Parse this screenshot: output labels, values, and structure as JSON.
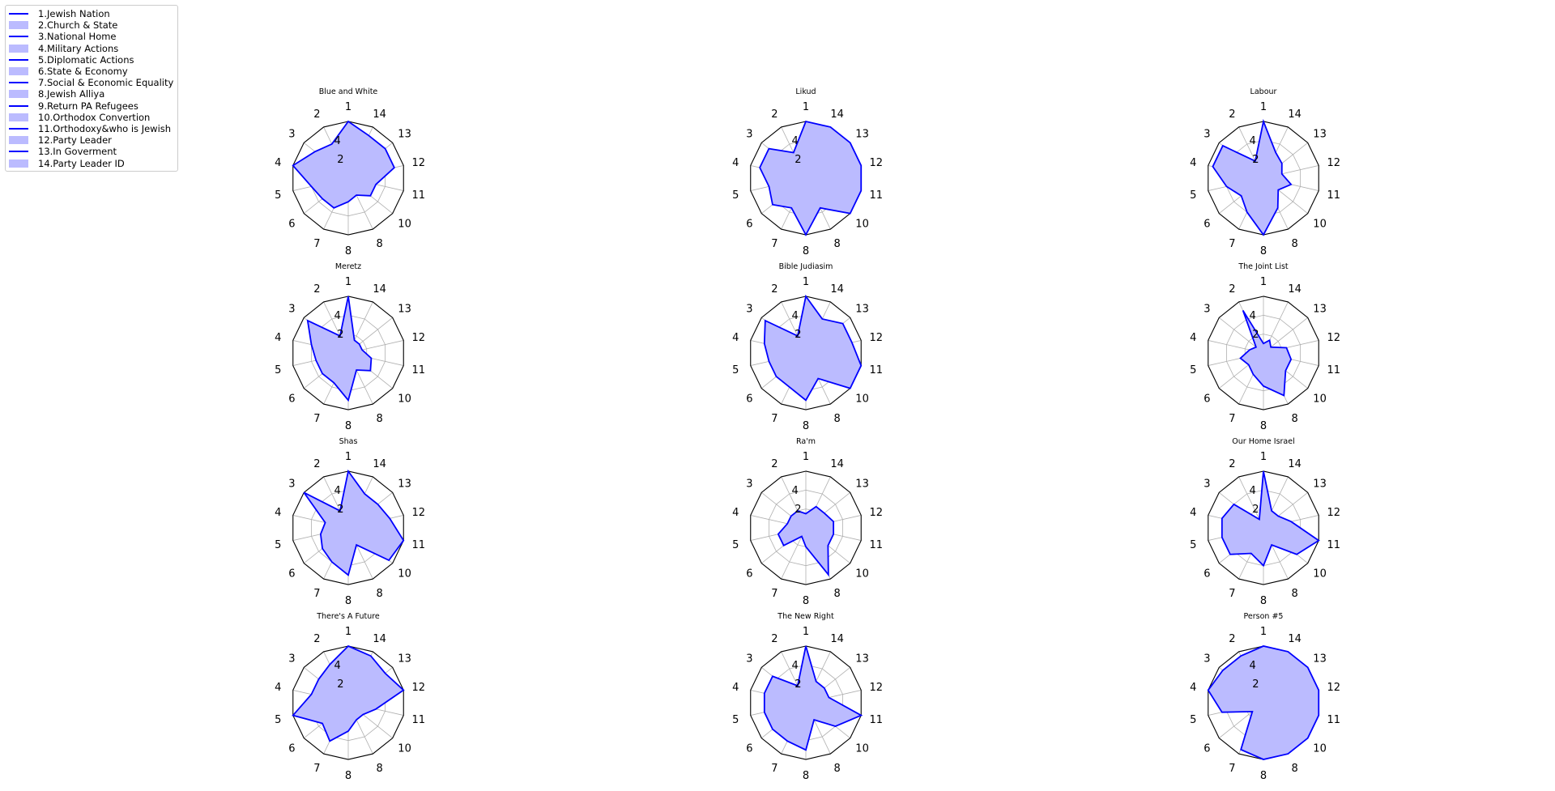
{
  "colors": {
    "line": "#0000ff",
    "fill": "#bbbbff",
    "grid": "#b0b0b0",
    "frame": "#000000"
  },
  "legend": {
    "items": [
      {
        "label": "1.Jewish Nation",
        "kind": "line"
      },
      {
        "label": "2.Church & State",
        "kind": "fill"
      },
      {
        "label": "3.National Home",
        "kind": "line"
      },
      {
        "label": "4.Military Actions",
        "kind": "fill"
      },
      {
        "label": "5.Diplomatic Actions",
        "kind": "line"
      },
      {
        "label": "6.State & Economy",
        "kind": "fill"
      },
      {
        "label": "7.Social & Economic Equality",
        "kind": "line"
      },
      {
        "label": "8.Jewish Alliya",
        "kind": "fill"
      },
      {
        "label": "9.Return PA Refugees",
        "kind": "line"
      },
      {
        "label": "10.Orthodox Convertion",
        "kind": "fill"
      },
      {
        "label": "11.Orthodoxy&who is Jewish",
        "kind": "line"
      },
      {
        "label": "12.Party Leader",
        "kind": "fill"
      },
      {
        "label": "13.In Goverment",
        "kind": "line"
      },
      {
        "label": "14.Party Leader ID",
        "kind": "fill"
      }
    ]
  },
  "chart_data": [
    {
      "type": "radar",
      "title": "Blue and White",
      "angle_labels": [
        "1",
        "2",
        "3",
        "4",
        "5",
        "6",
        "7",
        "8",
        "8",
        "10",
        "11",
        "12",
        "13",
        "14"
      ],
      "radial_ticks": [
        "2",
        "4"
      ],
      "rmax": 6,
      "values": [
        6,
        4,
        4.5,
        6,
        4,
        3.5,
        3.5,
        2.5,
        2,
        3,
        3,
        5,
        5,
        5
      ]
    },
    {
      "type": "radar",
      "title": "Likud",
      "angle_labels": [
        "1",
        "2",
        "3",
        "4",
        "5",
        "6",
        "7",
        "8",
        "8",
        "10",
        "11",
        "12",
        "13",
        "14"
      ],
      "radial_ticks": [
        "2",
        "4"
      ],
      "rmax": 6,
      "values": [
        6,
        3,
        5,
        5,
        4,
        4.5,
        3.5,
        6,
        3.5,
        6,
        6,
        6,
        6,
        6
      ]
    },
    {
      "type": "radar",
      "title": "Labour",
      "angle_labels": [
        "1",
        "2",
        "3",
        "4",
        "5",
        "6",
        "7",
        "8",
        "8",
        "10",
        "11",
        "12",
        "13",
        "14"
      ],
      "radial_ticks": [
        "2",
        "4"
      ],
      "rmax": 6,
      "values": [
        6,
        2,
        5.5,
        5.5,
        4,
        3,
        4,
        6,
        3.5,
        2,
        3,
        2,
        2.5,
        3
      ]
    },
    {
      "type": "radar",
      "title": "Meretz",
      "angle_labels": [
        "1",
        "2",
        "3",
        "4",
        "5",
        "6",
        "7",
        "8",
        "8",
        "10",
        "11",
        "12",
        "13",
        "14"
      ],
      "radial_ticks": [
        "2",
        "4"
      ],
      "rmax": 6,
      "values": [
        6,
        2,
        5.5,
        4,
        3.5,
        3.5,
        3.5,
        5,
        2,
        3,
        2.5,
        1.5,
        1.5,
        1.5
      ]
    },
    {
      "type": "radar",
      "title": "Bible Judiasim",
      "angle_labels": [
        "1",
        "2",
        "3",
        "4",
        "5",
        "6",
        "7",
        "8",
        "8",
        "10",
        "11",
        "12",
        "13",
        "14"
      ],
      "radial_ticks": [
        "2",
        "4"
      ],
      "rmax": 6,
      "values": [
        6,
        2,
        5.5,
        4.5,
        4,
        4,
        4,
        5,
        3,
        6,
        6,
        5,
        5,
        4
      ]
    },
    {
      "type": "radar",
      "title": "The Joint List",
      "angle_labels": [
        "1",
        "2",
        "3",
        "4",
        "5",
        "6",
        "7",
        "8",
        "8",
        "10",
        "11",
        "12",
        "13",
        "14"
      ],
      "radial_ticks": [
        "2",
        "4"
      ],
      "rmax": 6,
      "values": [
        1,
        5,
        1,
        1.5,
        2.5,
        2,
        2.5,
        3.5,
        5,
        3,
        3,
        2.5,
        1,
        1.5
      ]
    },
    {
      "type": "radar",
      "title": "Shas",
      "angle_labels": [
        "1",
        "2",
        "3",
        "4",
        "5",
        "6",
        "7",
        "8",
        "8",
        "10",
        "11",
        "12",
        "13",
        "14"
      ],
      "radial_ticks": [
        "2",
        "4"
      ],
      "rmax": 6,
      "values": [
        6,
        2,
        6,
        2.5,
        3,
        3.5,
        4,
        5,
        2,
        5.5,
        6,
        4.5,
        4,
        4
      ]
    },
    {
      "type": "radar",
      "title": "Ra'm",
      "angle_labels": [
        "1",
        "2",
        "3",
        "4",
        "5",
        "6",
        "7",
        "8",
        "8",
        "10",
        "11",
        "12",
        "13",
        "14"
      ],
      "radial_ticks": [
        "2",
        "4"
      ],
      "rmax": 6,
      "values": [
        1.5,
        2,
        2,
        2,
        3,
        3,
        1,
        2,
        5.5,
        3,
        3,
        3,
        2.5,
        2.5
      ]
    },
    {
      "type": "radar",
      "title": "Our Home Israel",
      "angle_labels": [
        "1",
        "2",
        "3",
        "4",
        "5",
        "6",
        "7",
        "8",
        "8",
        "10",
        "11",
        "12",
        "13",
        "14"
      ],
      "radial_ticks": [
        "2",
        "4"
      ],
      "rmax": 6,
      "values": [
        6,
        1,
        4,
        4.5,
        4.5,
        4.5,
        3,
        4,
        2,
        4.5,
        6,
        3,
        2,
        2
      ]
    },
    {
      "type": "radar",
      "title": "There's A Future",
      "angle_labels": [
        "1",
        "2",
        "3",
        "4",
        "5",
        "6",
        "7",
        "8",
        "8",
        "10",
        "11",
        "12",
        "13",
        "14"
      ],
      "radial_ticks": [
        "2",
        "4"
      ],
      "rmax": 6,
      "values": [
        6,
        4.5,
        4,
        4,
        6,
        3.5,
        4.5,
        3,
        2,
        2,
        3,
        6,
        5,
        5.5
      ]
    },
    {
      "type": "radar",
      "title": "The New Right",
      "angle_labels": [
        "1",
        "2",
        "3",
        "4",
        "5",
        "6",
        "7",
        "8",
        "8",
        "10",
        "11",
        "12",
        "13",
        "14"
      ],
      "radial_ticks": [
        "2",
        "4"
      ],
      "rmax": 6,
      "values": [
        6,
        2,
        4.5,
        4.5,
        4.5,
        4.5,
        4.5,
        5,
        2,
        4,
        6,
        2.5,
        2.5,
        2.5
      ]
    },
    {
      "type": "radar",
      "title": "Person #5",
      "angle_labels": [
        "1",
        "2",
        "3",
        "4",
        "5",
        "6",
        "7",
        "8",
        "8",
        "10",
        "11",
        "12",
        "13",
        "14"
      ],
      "radial_ticks": [
        "2",
        "4"
      ],
      "rmax": 6,
      "values": [
        6,
        5.5,
        5.5,
        6,
        4.5,
        1.5,
        5.5,
        6,
        6,
        6,
        6,
        6,
        6,
        6
      ]
    }
  ]
}
